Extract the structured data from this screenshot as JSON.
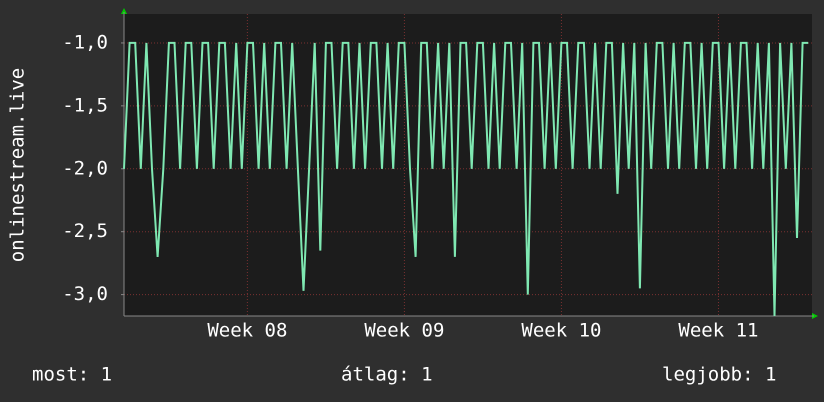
{
  "chart_data": {
    "type": "line",
    "ylabel": "onlinestream.live",
    "color": "#7fe8b2",
    "grid": true,
    "x": [
      0,
      0.25,
      0.5,
      0.75,
      1,
      1.25,
      1.5,
      1.75,
      2,
      2.25,
      2.5,
      2.75,
      3,
      3.25,
      3.5,
      3.75,
      4,
      4.25,
      4.5,
      4.75,
      5,
      5.25,
      5.5,
      5.75,
      6,
      6.25,
      6.5,
      6.75,
      7,
      7.25,
      7.5,
      7.75,
      8,
      8.25,
      8.5,
      8.75,
      9,
      9.25,
      9.5,
      9.75,
      10,
      10.25,
      10.5,
      10.75,
      11,
      11.25,
      11.5,
      11.75,
      12,
      12.25,
      12.5,
      12.75,
      13,
      13.25,
      13.5,
      13.75,
      14,
      14.25,
      14.5,
      14.75,
      15,
      15.25,
      15.5,
      15.75,
      16,
      16.25,
      16.5,
      16.75,
      17,
      17.25,
      17.5,
      17.75,
      18,
      18.25,
      18.5,
      18.75,
      19,
      19.25,
      19.5,
      19.75,
      20,
      20.25,
      20.5,
      20.75,
      21,
      21.25,
      21.5,
      21.75,
      22,
      22.25,
      22.5,
      22.75,
      23,
      23.25,
      23.5,
      23.75,
      24,
      24.25,
      24.5,
      24.75,
      25,
      25.25,
      25.5,
      25.75,
      26,
      26.25,
      26.5,
      26.75,
      27,
      27.25,
      27.5,
      27.75,
      28,
      28.25,
      28.5,
      28.75,
      29,
      29.25,
      29.5,
      29.75,
      30,
      30.25,
      30.5
    ],
    "values": [
      -2,
      -1,
      -1,
      -2,
      -1,
      -2,
      -2.7,
      -2,
      -1,
      -1,
      -2,
      -1,
      -1,
      -2,
      -1,
      -1,
      -2,
      -1,
      -1,
      -2,
      -1,
      -2,
      -1,
      -1,
      -2,
      -1,
      -2,
      -1,
      -1,
      -2,
      -1,
      -2,
      -2.97,
      -2,
      -1,
      -2.65,
      -1,
      -1,
      -2,
      -1,
      -1,
      -2,
      -1,
      -2,
      -1,
      -1,
      -2,
      -1,
      -2,
      -1,
      -1,
      -2,
      -2.7,
      -1,
      -1,
      -2,
      -1,
      -2,
      -1,
      -2.7,
      -1,
      -1,
      -2,
      -1,
      -1,
      -2,
      -1,
      -2,
      -1,
      -1,
      -2,
      -1,
      -3,
      -1,
      -1,
      -2,
      -1,
      -2,
      -1,
      -1,
      -2,
      -1,
      -1,
      -2,
      -1,
      -2,
      -1,
      -1,
      -2.2,
      -1,
      -2,
      -1,
      -2.95,
      -1,
      -2,
      -1,
      -1,
      -2,
      -1,
      -2,
      -1,
      -1,
      -2,
      -1,
      -2,
      -1,
      -1,
      -2,
      -1,
      -2,
      -1,
      -1,
      -2,
      -1,
      -2,
      -1,
      -3.17,
      -1,
      -2,
      -1,
      -2.55,
      -1,
      -1
    ],
    "xlim": [
      0,
      30.67
    ],
    "xticks": [
      {
        "value": 5.5,
        "label": "Week 08"
      },
      {
        "value": 12.5,
        "label": "Week 09"
      },
      {
        "value": 19.5,
        "label": "Week 10"
      },
      {
        "value": 26.5,
        "label": "Week 11"
      }
    ],
    "ylim": [
      -3.17,
      -0.77
    ],
    "yticks": [
      {
        "value": -1,
        "label": "-1,0"
      },
      {
        "value": -1.5,
        "label": "-1,5"
      },
      {
        "value": -2,
        "label": "-2,0"
      },
      {
        "value": -2.5,
        "label": "-2,5"
      },
      {
        "value": -3,
        "label": "-3,0"
      }
    ],
    "stats": [
      "most: 1",
      "átlag: 1",
      "legjobb: 1"
    ]
  }
}
